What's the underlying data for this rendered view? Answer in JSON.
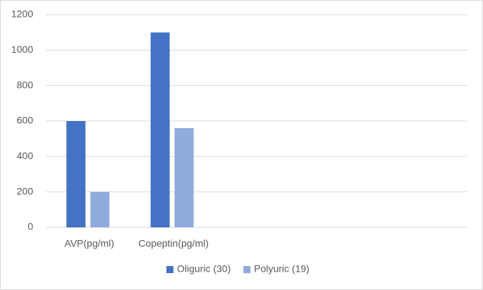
{
  "chart_data": {
    "type": "bar",
    "categories": [
      "AVP(pg/ml)",
      "Copeptin(pg/ml)",
      null,
      null,
      null
    ],
    "series": [
      {
        "name": "Oliguric (30)",
        "color": "#4472c4",
        "values": [
          600,
          1100,
          null,
          null,
          null
        ]
      },
      {
        "name": "Polyuric (19)",
        "color": "#8faadc",
        "values": [
          200,
          560,
          null,
          null,
          null
        ]
      }
    ],
    "ylim": [
      0,
      1200
    ],
    "yticks": [
      0,
      200,
      400,
      600,
      800,
      1000,
      1200
    ],
    "grid": true,
    "legend": "bottom"
  }
}
